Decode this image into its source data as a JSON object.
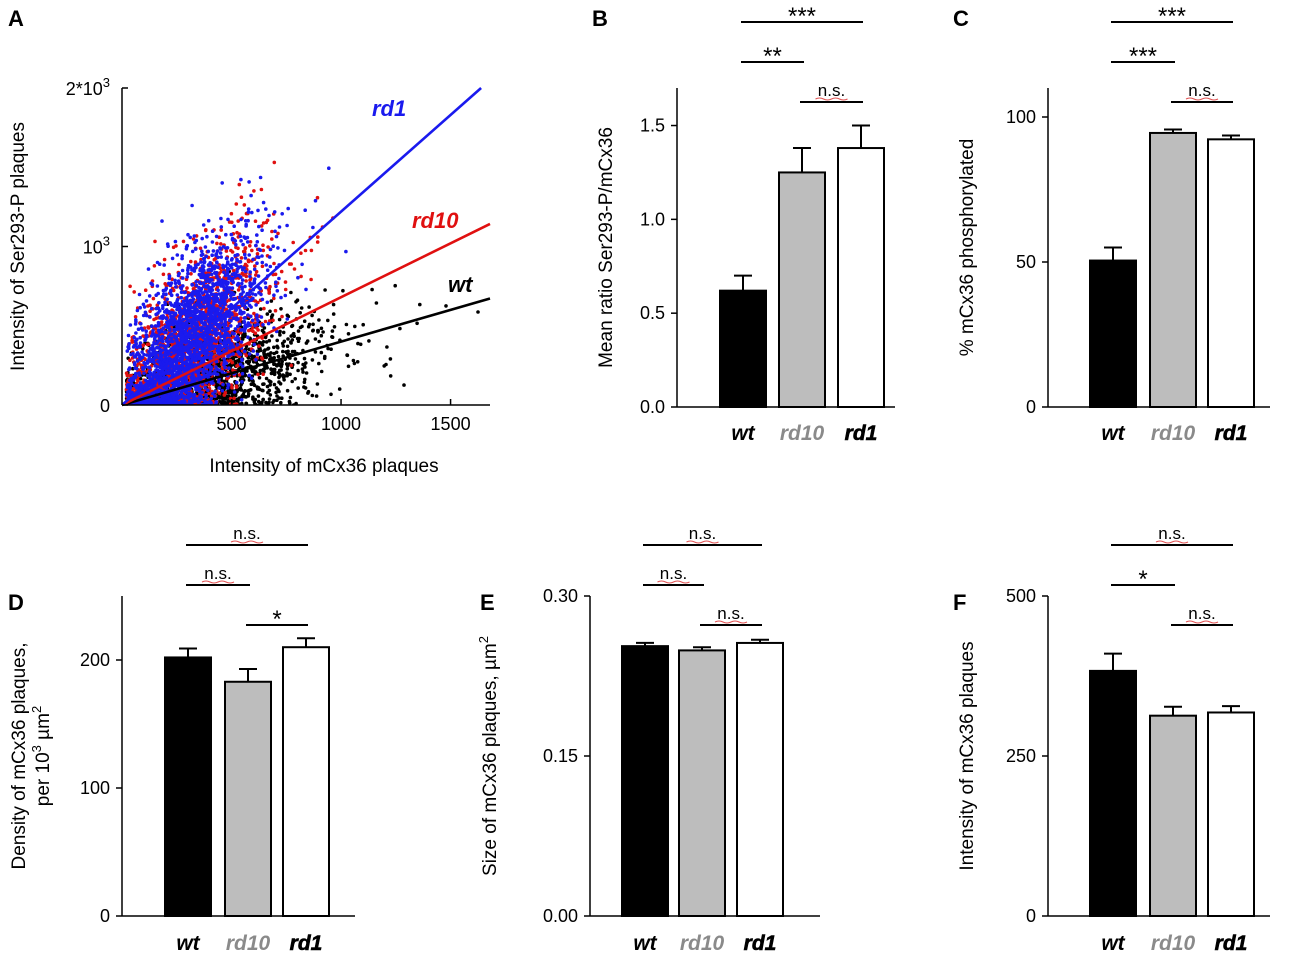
{
  "colors": {
    "wt": "#000000",
    "rd10": "#e01010",
    "rd1": "#1a1aee",
    "bar_wt": "#000000",
    "bar_rd10": "#bdbdbd",
    "bar_rd1": "#ffffff",
    "cat_wt": "#000000",
    "cat_rd10": "#8a8a8a",
    "cat_rd1": "#000000"
  },
  "chart_data": [
    {
      "panel": "A",
      "type": "scatter",
      "xlabel": "Intensity of mCx36 plaques",
      "ylabel": "Intensity of Ser293-P plaques",
      "xlim": [
        0,
        1680
      ],
      "ylim": [
        0,
        2000
      ],
      "xticks": [
        {
          "v": 500,
          "label": "500"
        },
        {
          "v": 1000,
          "label": "1000"
        },
        {
          "v": 1500,
          "label": "1500"
        }
      ],
      "yticks": [
        {
          "v": 0,
          "label": "0"
        },
        {
          "v": 1000,
          "label": "10",
          "sup": "3"
        },
        {
          "v": 2000,
          "label": "2*10",
          "sup": "3"
        }
      ],
      "series": [
        {
          "name": "wt",
          "slope": 0.4,
          "cloud": {
            "x_mean": 400,
            "x_sd": 230,
            "y_ratio": 0.4,
            "y_sd": 170,
            "n": 1400
          }
        },
        {
          "name": "rd10",
          "slope": 0.68,
          "cloud": {
            "x_mean": 300,
            "x_sd": 150,
            "y_ratio": 1.15,
            "y_sd": 260,
            "n": 1600
          }
        },
        {
          "name": "rd1",
          "slope": 1.22,
          "cloud": {
            "x_mean": 290,
            "x_sd": 140,
            "y_ratio": 1.25,
            "y_sd": 260,
            "n": 2200
          }
        }
      ],
      "line_labels": [
        "rd1",
        "rd10",
        "wt"
      ]
    },
    {
      "panel": "B",
      "type": "bar",
      "categories": [
        "wt",
        "rd10",
        "rd1"
      ],
      "values": [
        0.62,
        1.25,
        1.38
      ],
      "errors": [
        0.08,
        0.13,
        0.12
      ],
      "ylabel": "Mean ratio Ser293-P/mCx36",
      "ylim": [
        0,
        1.7
      ],
      "yticks": [
        {
          "v": 0,
          "label": "0.0"
        },
        {
          "v": 0.5,
          "label": "0.5"
        },
        {
          "v": 1.0,
          "label": "1.0"
        },
        {
          "v": 1.5,
          "label": "1.5"
        }
      ],
      "significance": [
        {
          "from": 0,
          "to": 2,
          "label": "***",
          "level": 0
        },
        {
          "from": 0,
          "to": 1,
          "label": "**",
          "level": 1
        },
        {
          "from": 1,
          "to": 2,
          "label": "n.s.",
          "level": 2
        }
      ]
    },
    {
      "panel": "C",
      "type": "bar",
      "categories": [
        "wt",
        "rd10",
        "rd1"
      ],
      "values": [
        50.5,
        94.5,
        92.3
      ],
      "errors": [
        4.5,
        1.2,
        1.3
      ],
      "ylabel": "% mCx36 phosphorylated",
      "ylim": [
        0,
        110
      ],
      "yticks": [
        {
          "v": 0,
          "label": "0"
        },
        {
          "v": 50,
          "label": "50"
        },
        {
          "v": 100,
          "label": "100"
        }
      ],
      "significance": [
        {
          "from": 0,
          "to": 2,
          "label": "***",
          "level": 0
        },
        {
          "from": 0,
          "to": 1,
          "label": "***",
          "level": 1
        },
        {
          "from": 1,
          "to": 2,
          "label": "n.s.",
          "level": 2
        }
      ]
    },
    {
      "panel": "D",
      "type": "bar",
      "categories": [
        "wt",
        "rd10",
        "rd1"
      ],
      "values": [
        202,
        183,
        210
      ],
      "errors": [
        7,
        10,
        7
      ],
      "ylabel": "Density of mCx36 plaques,",
      "ylabel2": "per 10",
      "ylabel2_sup": "3",
      "ylabel2_tail": " µm",
      "ylabel2_sup2": "2",
      "ylim": [
        0,
        250
      ],
      "yticks": [
        {
          "v": 0,
          "label": "0"
        },
        {
          "v": 100,
          "label": "100"
        },
        {
          "v": 200,
          "label": "200"
        }
      ],
      "significance": [
        {
          "from": 0,
          "to": 2,
          "label": "n.s.",
          "level": 0
        },
        {
          "from": 0,
          "to": 1,
          "label": "n.s.",
          "level": 1
        },
        {
          "from": 1,
          "to": 2,
          "label": "*",
          "level": 2
        }
      ]
    },
    {
      "panel": "E",
      "type": "bar",
      "categories": [
        "wt",
        "rd10",
        "rd1"
      ],
      "values": [
        0.253,
        0.249,
        0.256
      ],
      "errors": [
        0.003,
        0.003,
        0.003
      ],
      "ylabel": "Size of mCx36 plaques, µm",
      "ylabel_sup": "2",
      "ylim": [
        0,
        0.3
      ],
      "yticks": [
        {
          "v": 0,
          "label": "0.00"
        },
        {
          "v": 0.15,
          "label": "0.15"
        },
        {
          "v": 0.3,
          "label": "0.30"
        }
      ],
      "significance": [
        {
          "from": 0,
          "to": 2,
          "label": "n.s.",
          "level": 0
        },
        {
          "from": 0,
          "to": 1,
          "label": "n.s.",
          "level": 1
        },
        {
          "from": 1,
          "to": 2,
          "label": "n.s.",
          "level": 2
        }
      ]
    },
    {
      "panel": "F",
      "type": "bar",
      "categories": [
        "wt",
        "rd10",
        "rd1"
      ],
      "values": [
        383,
        313,
        318
      ],
      "errors": [
        27,
        14,
        10
      ],
      "ylabel": "Intensity of mCx36 plaques",
      "ylim": [
        0,
        500
      ],
      "yticks": [
        {
          "v": 0,
          "label": "0"
        },
        {
          "v": 250,
          "label": "250"
        },
        {
          "v": 500,
          "label": "500"
        }
      ],
      "significance": [
        {
          "from": 0,
          "to": 2,
          "label": "n.s.",
          "level": 0
        },
        {
          "from": 0,
          "to": 1,
          "label": "*",
          "level": 1
        },
        {
          "from": 1,
          "to": 2,
          "label": "n.s.",
          "level": 2
        }
      ]
    }
  ]
}
